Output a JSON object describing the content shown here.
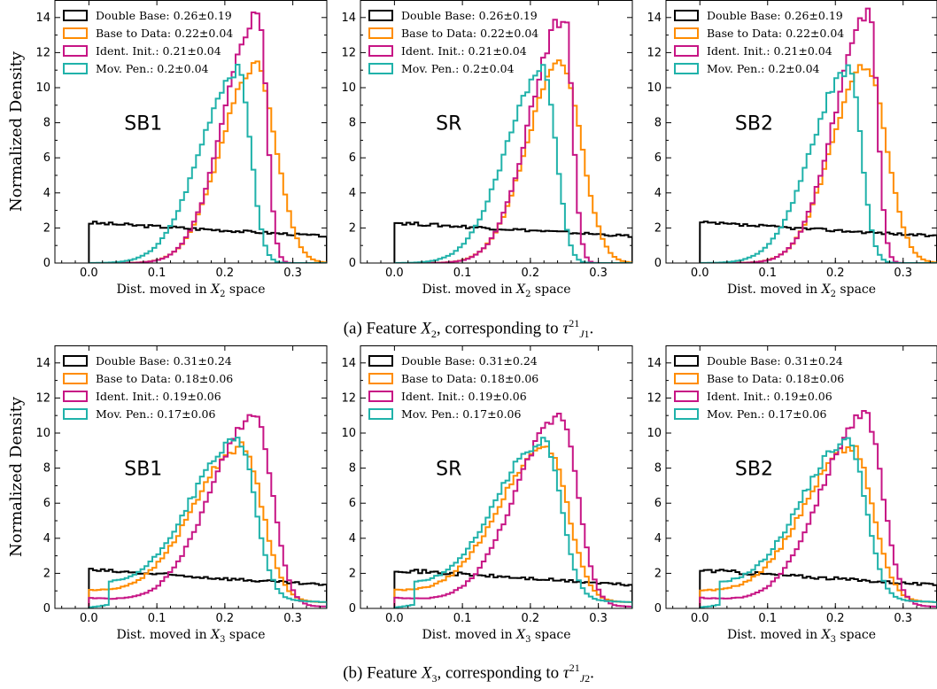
{
  "figure": {
    "captions": [
      {
        "label": "(a) Feature ",
        "var": "X",
        "var_sub": "2",
        "mid": ", corresponding to ",
        "tau": "τ",
        "tau_sup": "21",
        "tau_sub": "J",
        "tau_subsub": "1",
        "end": "."
      },
      {
        "label": "(b) Feature ",
        "var": "X",
        "var_sub": "3",
        "mid": ", corresponding to ",
        "tau": "τ",
        "tau_sup": "21",
        "tau_sub": "J",
        "tau_subsub": "2",
        "end": "."
      }
    ]
  },
  "colors": {
    "double_base": "#000000",
    "base_to_data": "#ff8c00",
    "ident_init": "#c71585",
    "mov_pen": "#20b2aa"
  },
  "chart_data": [
    {
      "type": "step-histogram",
      "row": 0,
      "col": 0,
      "region": "SB1",
      "ylabel": "Normalized Density",
      "xlabel": "Dist. moved in X2 space",
      "xlabel_parts": [
        "Dist. moved in ",
        "X",
        "2",
        " space"
      ],
      "xlim": [
        -0.05,
        0.35
      ],
      "ylim": [
        0,
        15
      ],
      "xticks": [
        "0.0",
        "0.1",
        "0.2",
        "0.3"
      ],
      "yticks": [
        "0",
        "2",
        "4",
        "6",
        "8",
        "10",
        "12",
        "14"
      ],
      "legend": [
        "Double Base: 0.26±0.19",
        "Base to Data: 0.22±0.04",
        "Ident. Init.: 0.21±0.04",
        "Mov. Pen.: 0.2±0.04"
      ],
      "series_key": "a",
      "mov_shift": -0.02,
      "ident_peak": 14.2
    },
    {
      "type": "step-histogram",
      "row": 0,
      "col": 1,
      "region": "SR",
      "ylabel": "",
      "xlabel": "Dist. moved in X2 space",
      "xlabel_parts": [
        "Dist. moved in ",
        "X",
        "2",
        " space"
      ],
      "xlim": [
        -0.05,
        0.35
      ],
      "ylim": [
        0,
        15
      ],
      "xticks": [
        "0.0",
        "0.1",
        "0.2",
        "0.3"
      ],
      "yticks": [
        "0",
        "2",
        "4",
        "6",
        "8",
        "10",
        "12",
        "14"
      ],
      "legend": [
        "Double Base: 0.26±0.19",
        "Base to Data: 0.22±0.04",
        "Ident. Init.: 0.21±0.04",
        "Mov. Pen.: 0.2±0.04"
      ],
      "series_key": "a",
      "mov_shift": -0.02,
      "ident_peak": 14.0
    },
    {
      "type": "step-histogram",
      "row": 0,
      "col": 2,
      "region": "SB2",
      "ylabel": "",
      "xlabel": "Dist. moved in X2 space",
      "xlabel_parts": [
        "Dist. moved in ",
        "X",
        "2",
        " space"
      ],
      "xlim": [
        -0.05,
        0.35
      ],
      "ylim": [
        0,
        15
      ],
      "xticks": [
        "0.0",
        "0.1",
        "0.2",
        "0.3"
      ],
      "yticks": [
        "0",
        "2",
        "4",
        "6",
        "8",
        "10",
        "12",
        "14"
      ],
      "legend": [
        "Double Base: 0.26±0.19",
        "Base to Data: 0.22±0.04",
        "Ident. Init.: 0.21±0.04",
        "Mov. Pen.: 0.2±0.04"
      ],
      "series_key": "a",
      "mov_shift": -0.02,
      "ident_peak": 14.2
    },
    {
      "type": "step-histogram",
      "row": 1,
      "col": 0,
      "region": "SB1",
      "ylabel": "Normalized Density",
      "xlabel": "Dist. moved in X3 space",
      "xlabel_parts": [
        "Dist. moved in ",
        "X",
        "3",
        " space"
      ],
      "xlim": [
        -0.05,
        0.35
      ],
      "ylim": [
        0,
        15
      ],
      "xticks": [
        "0.0",
        "0.1",
        "0.2",
        "0.3"
      ],
      "yticks": [
        "0",
        "2",
        "4",
        "6",
        "8",
        "10",
        "12",
        "14"
      ],
      "legend": [
        "Double Base: 0.31±0.24",
        "Base to Data: 0.18±0.06",
        "Ident. Init.: 0.19±0.06",
        "Mov. Pen.: 0.17±0.06"
      ],
      "series_key": "b",
      "mov_shift": -0.005,
      "ident_peak": 10.8
    },
    {
      "type": "step-histogram",
      "row": 1,
      "col": 1,
      "region": "SR",
      "ylabel": "",
      "xlabel": "Dist. moved in X3 space",
      "xlabel_parts": [
        "Dist. moved in ",
        "X",
        "3",
        " space"
      ],
      "xlim": [
        -0.05,
        0.35
      ],
      "ylim": [
        0,
        15
      ],
      "xticks": [
        "0.0",
        "0.1",
        "0.2",
        "0.3"
      ],
      "yticks": [
        "0",
        "2",
        "4",
        "6",
        "8",
        "10",
        "12",
        "14"
      ],
      "legend": [
        "Double Base: 0.31±0.24",
        "Base to Data: 0.18±0.06",
        "Ident. Init.: 0.19±0.06",
        "Mov. Pen.: 0.17±0.06"
      ],
      "series_key": "b",
      "mov_shift": -0.005,
      "ident_peak": 10.8
    },
    {
      "type": "step-histogram",
      "row": 1,
      "col": 2,
      "region": "SB2",
      "ylabel": "",
      "xlabel": "Dist. moved in X3 space",
      "xlabel_parts": [
        "Dist. moved in ",
        "X",
        "3",
        " space"
      ],
      "xlim": [
        -0.05,
        0.35
      ],
      "ylim": [
        0,
        15
      ],
      "xticks": [
        "0.0",
        "0.1",
        "0.2",
        "0.3"
      ],
      "yticks": [
        "0",
        "2",
        "4",
        "6",
        "8",
        "10",
        "12",
        "14"
      ],
      "legend": [
        "Double Base: 0.31±0.24",
        "Base to Data: 0.18±0.06",
        "Ident. Init.: 0.19±0.06",
        "Mov. Pen.: 0.17±0.06"
      ],
      "series_key": "b",
      "mov_shift": -0.005,
      "ident_peak": 10.8
    }
  ]
}
